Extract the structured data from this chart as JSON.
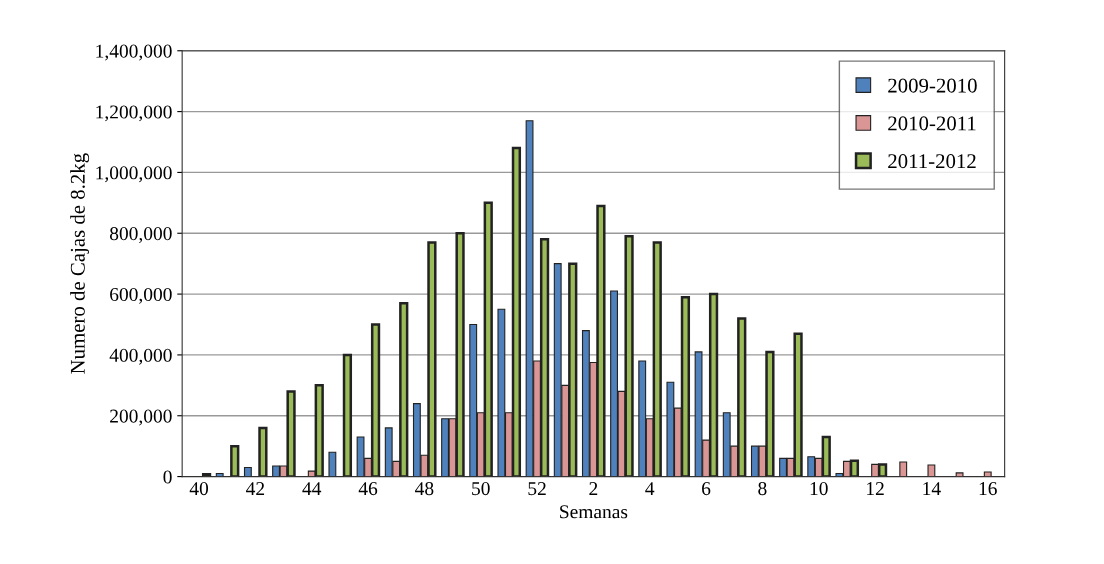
{
  "chart_data": {
    "type": "bar",
    "xlabel": "Semanas",
    "ylabel": "Numero de Cajas de 8.2kg",
    "categories": [
      "40",
      null,
      "42",
      null,
      "44",
      null,
      "46",
      null,
      "48",
      null,
      "50",
      null,
      "52",
      null,
      "2",
      null,
      "4",
      null,
      "6",
      null,
      "8",
      null,
      "10",
      null,
      "12",
      null,
      "14",
      null,
      "16"
    ],
    "series": [
      {
        "name": "2009-2010",
        "color": "#4f81bd",
        "values": [
          null,
          10000,
          30000,
          35000,
          null,
          80000,
          130000,
          160000,
          240000,
          190000,
          500000,
          550000,
          1170000,
          700000,
          480000,
          610000,
          380000,
          310000,
          410000,
          210000,
          100000,
          60000,
          65000,
          10000,
          null,
          null,
          null,
          null,
          null
        ]
      },
      {
        "name": "2010-2011",
        "color": "#d99694",
        "values": [
          null,
          null,
          null,
          35000,
          18000,
          null,
          60000,
          50000,
          70000,
          190000,
          210000,
          210000,
          380000,
          300000,
          375000,
          280000,
          190000,
          225000,
          120000,
          100000,
          100000,
          60000,
          60000,
          50000,
          40000,
          48000,
          38000,
          12000,
          15000
        ]
      },
      {
        "name": "2011-2012",
        "color": "#9bbb59",
        "values": [
          8000,
          100000,
          160000,
          280000,
          300000,
          400000,
          500000,
          570000,
          770000,
          800000,
          900000,
          1080000,
          780000,
          700000,
          890000,
          790000,
          770000,
          590000,
          600000,
          520000,
          410000,
          470000,
          130000,
          52000,
          40000,
          null,
          null,
          null,
          null
        ]
      }
    ],
    "ylim": [
      0,
      1400000
    ],
    "yticks": [
      {
        "value": 0,
        "label": "0"
      },
      {
        "value": 200000,
        "label": "200,000"
      },
      {
        "value": 400000,
        "label": "400,000"
      },
      {
        "value": 600000,
        "label": "600,000"
      },
      {
        "value": 800000,
        "label": "800,000"
      },
      {
        "value": 1000000,
        "label": "1,000,000"
      },
      {
        "value": 1200000,
        "label": "1,200,000"
      },
      {
        "value": 1400000,
        "label": "1,400,000"
      }
    ],
    "grid": "y",
    "legend": "top right"
  }
}
